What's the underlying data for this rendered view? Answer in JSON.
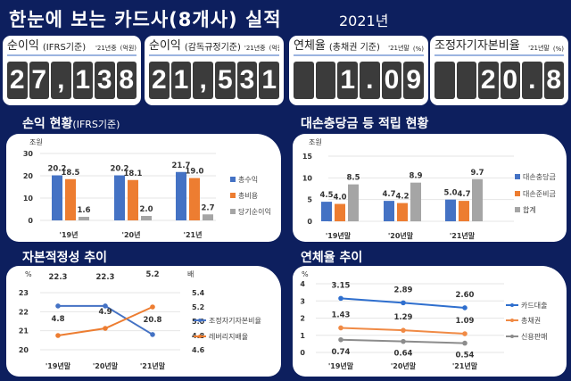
{
  "header": {
    "title": "한눈에 보는 카드사(8개사) 실적",
    "year": "2021년"
  },
  "kpis": [
    {
      "label": "순이익",
      "sub": "(IFRS기준)",
      "period": "'21년중",
      "unit": "(억원)",
      "digits": [
        "2",
        "7",
        ",",
        "1",
        "3",
        "8"
      ]
    },
    {
      "label": "순이익",
      "sub": "(감독규정기준)",
      "period": "'21년중",
      "unit": "(억원)",
      "digits": [
        "2",
        "1",
        ",",
        "5",
        "3",
        "1"
      ]
    },
    {
      "label": "연체율",
      "sub": "(총채권 기준)",
      "period": "'21년말",
      "unit": "(%)",
      "digits": [
        "",
        "",
        "1",
        ".",
        "0",
        "9"
      ]
    },
    {
      "label": "조정자기자본비율",
      "sub": "",
      "period": "'21년말",
      "unit": "(%)",
      "digits": [
        "",
        "",
        "2",
        "0",
        ".",
        "8"
      ]
    }
  ],
  "sections": {
    "s1": "손익 현황",
    "s1sub": "(IFRS기준)",
    "s2": "대손충당금 등 적립 현황",
    "s3": "자본적정성 추이",
    "s4": "연체율 추이"
  },
  "chart_data": [
    {
      "type": "bar",
      "unit": "조원",
      "categories": [
        "'19년",
        "'20년",
        "'21년"
      ],
      "ylim": [
        0,
        30
      ],
      "yticks": [
        0,
        10,
        20,
        30
      ],
      "legend": "right",
      "series": [
        {
          "name": "총수익",
          "color": "#4472c4",
          "values": [
            20.2,
            20.2,
            21.7
          ]
        },
        {
          "name": "총비용",
          "color": "#ed7d31",
          "values": [
            18.5,
            18.1,
            19.0
          ]
        },
        {
          "name": "당기순이익",
          "color": "#a5a5a5",
          "values": [
            1.6,
            2.0,
            2.7
          ]
        }
      ]
    },
    {
      "type": "bar",
      "unit": "조원",
      "categories": [
        "'19년말",
        "'20년말",
        "'21년말"
      ],
      "ylim": [
        0,
        15
      ],
      "yticks": [
        0,
        5,
        10,
        15
      ],
      "legend": "right",
      "series": [
        {
          "name": "대손충당금",
          "color": "#4472c4",
          "values": [
            4.5,
            4.7,
            5.0
          ]
        },
        {
          "name": "대손준비금",
          "color": "#ed7d31",
          "values": [
            4.0,
            4.2,
            4.7
          ]
        },
        {
          "name": "합계",
          "color": "#a5a5a5",
          "values": [
            8.5,
            8.9,
            9.7
          ]
        }
      ]
    },
    {
      "type": "line",
      "unit": "%",
      "unit2": "배",
      "categories": [
        "'19년말",
        "'20년말",
        "'21년말"
      ],
      "ylim": [
        20,
        23
      ],
      "yticks": [
        "20",
        "21",
        "22",
        "23"
      ],
      "y2lim": [
        4.6,
        5.4
      ],
      "y2ticks": [
        "4.6",
        "4.8",
        "5.0",
        "5.2",
        "5.4"
      ],
      "legend": "right",
      "series": [
        {
          "name": "조정자기자본비율",
          "color": "#4472c4",
          "axis": "left",
          "values": [
            22.3,
            22.3,
            20.8
          ],
          "labels": [
            "22.3",
            "22.3",
            "20.8"
          ]
        },
        {
          "name": "레버리지배율",
          "color": "#ed7d31",
          "axis": "right",
          "values": [
            4.8,
            4.9,
            5.2
          ],
          "labels": [
            "4.8",
            "4.9",
            "5.2"
          ]
        }
      ]
    },
    {
      "type": "line",
      "unit": "%",
      "categories": [
        "'19년말",
        "'20년말",
        "'21년말"
      ],
      "ylim": [
        0,
        4
      ],
      "yticks": [
        "0",
        "1",
        "2",
        "3",
        "4"
      ],
      "legend": "right",
      "series": [
        {
          "name": "카드대출",
          "color": "#2f6fce",
          "values": [
            3.15,
            2.89,
            2.6
          ],
          "labels": [
            "3.15",
            "2.89",
            "2.60"
          ]
        },
        {
          "name": "총채권",
          "color": "#f08a45",
          "values": [
            1.43,
            1.29,
            1.09
          ],
          "labels": [
            "1.43",
            "1.29",
            "1.09"
          ]
        },
        {
          "name": "신용판매",
          "color": "#8c8c8c",
          "values": [
            0.74,
            0.64,
            0.54
          ],
          "labels": [
            "0.74",
            "0.64",
            "0.54"
          ]
        }
      ]
    }
  ]
}
